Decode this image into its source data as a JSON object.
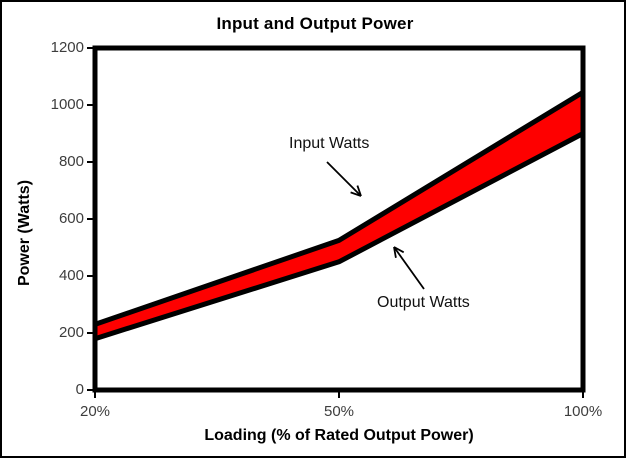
{
  "frame": {
    "background_color": "#ffffff",
    "border_color": "#000000"
  },
  "chart_data": {
    "type": "area",
    "title": "Input and Output Power",
    "xlabel": "Loading (% of Rated Output Power)",
    "ylabel": "Power (Watts)",
    "categories": [
      "20%",
      "50%",
      "100%"
    ],
    "series": [
      {
        "name": "Input Watts",
        "values": [
          230,
          525,
          1045
        ]
      },
      {
        "name": "Output Watts",
        "values": [
          180,
          450,
          900
        ]
      }
    ],
    "band": {
      "between": [
        "Input Watts",
        "Output Watts"
      ],
      "fill_color": "#fe0000",
      "line_color": "#000000"
    },
    "ylim": [
      0,
      1200
    ],
    "y_ticks": [
      0,
      200,
      400,
      600,
      800,
      1000,
      1200
    ],
    "grid": false,
    "legend_position": "none",
    "annotations": [
      {
        "text": "Input Watts",
        "target": "upper-line"
      },
      {
        "text": "Output Watts",
        "target": "lower-line"
      }
    ]
  }
}
